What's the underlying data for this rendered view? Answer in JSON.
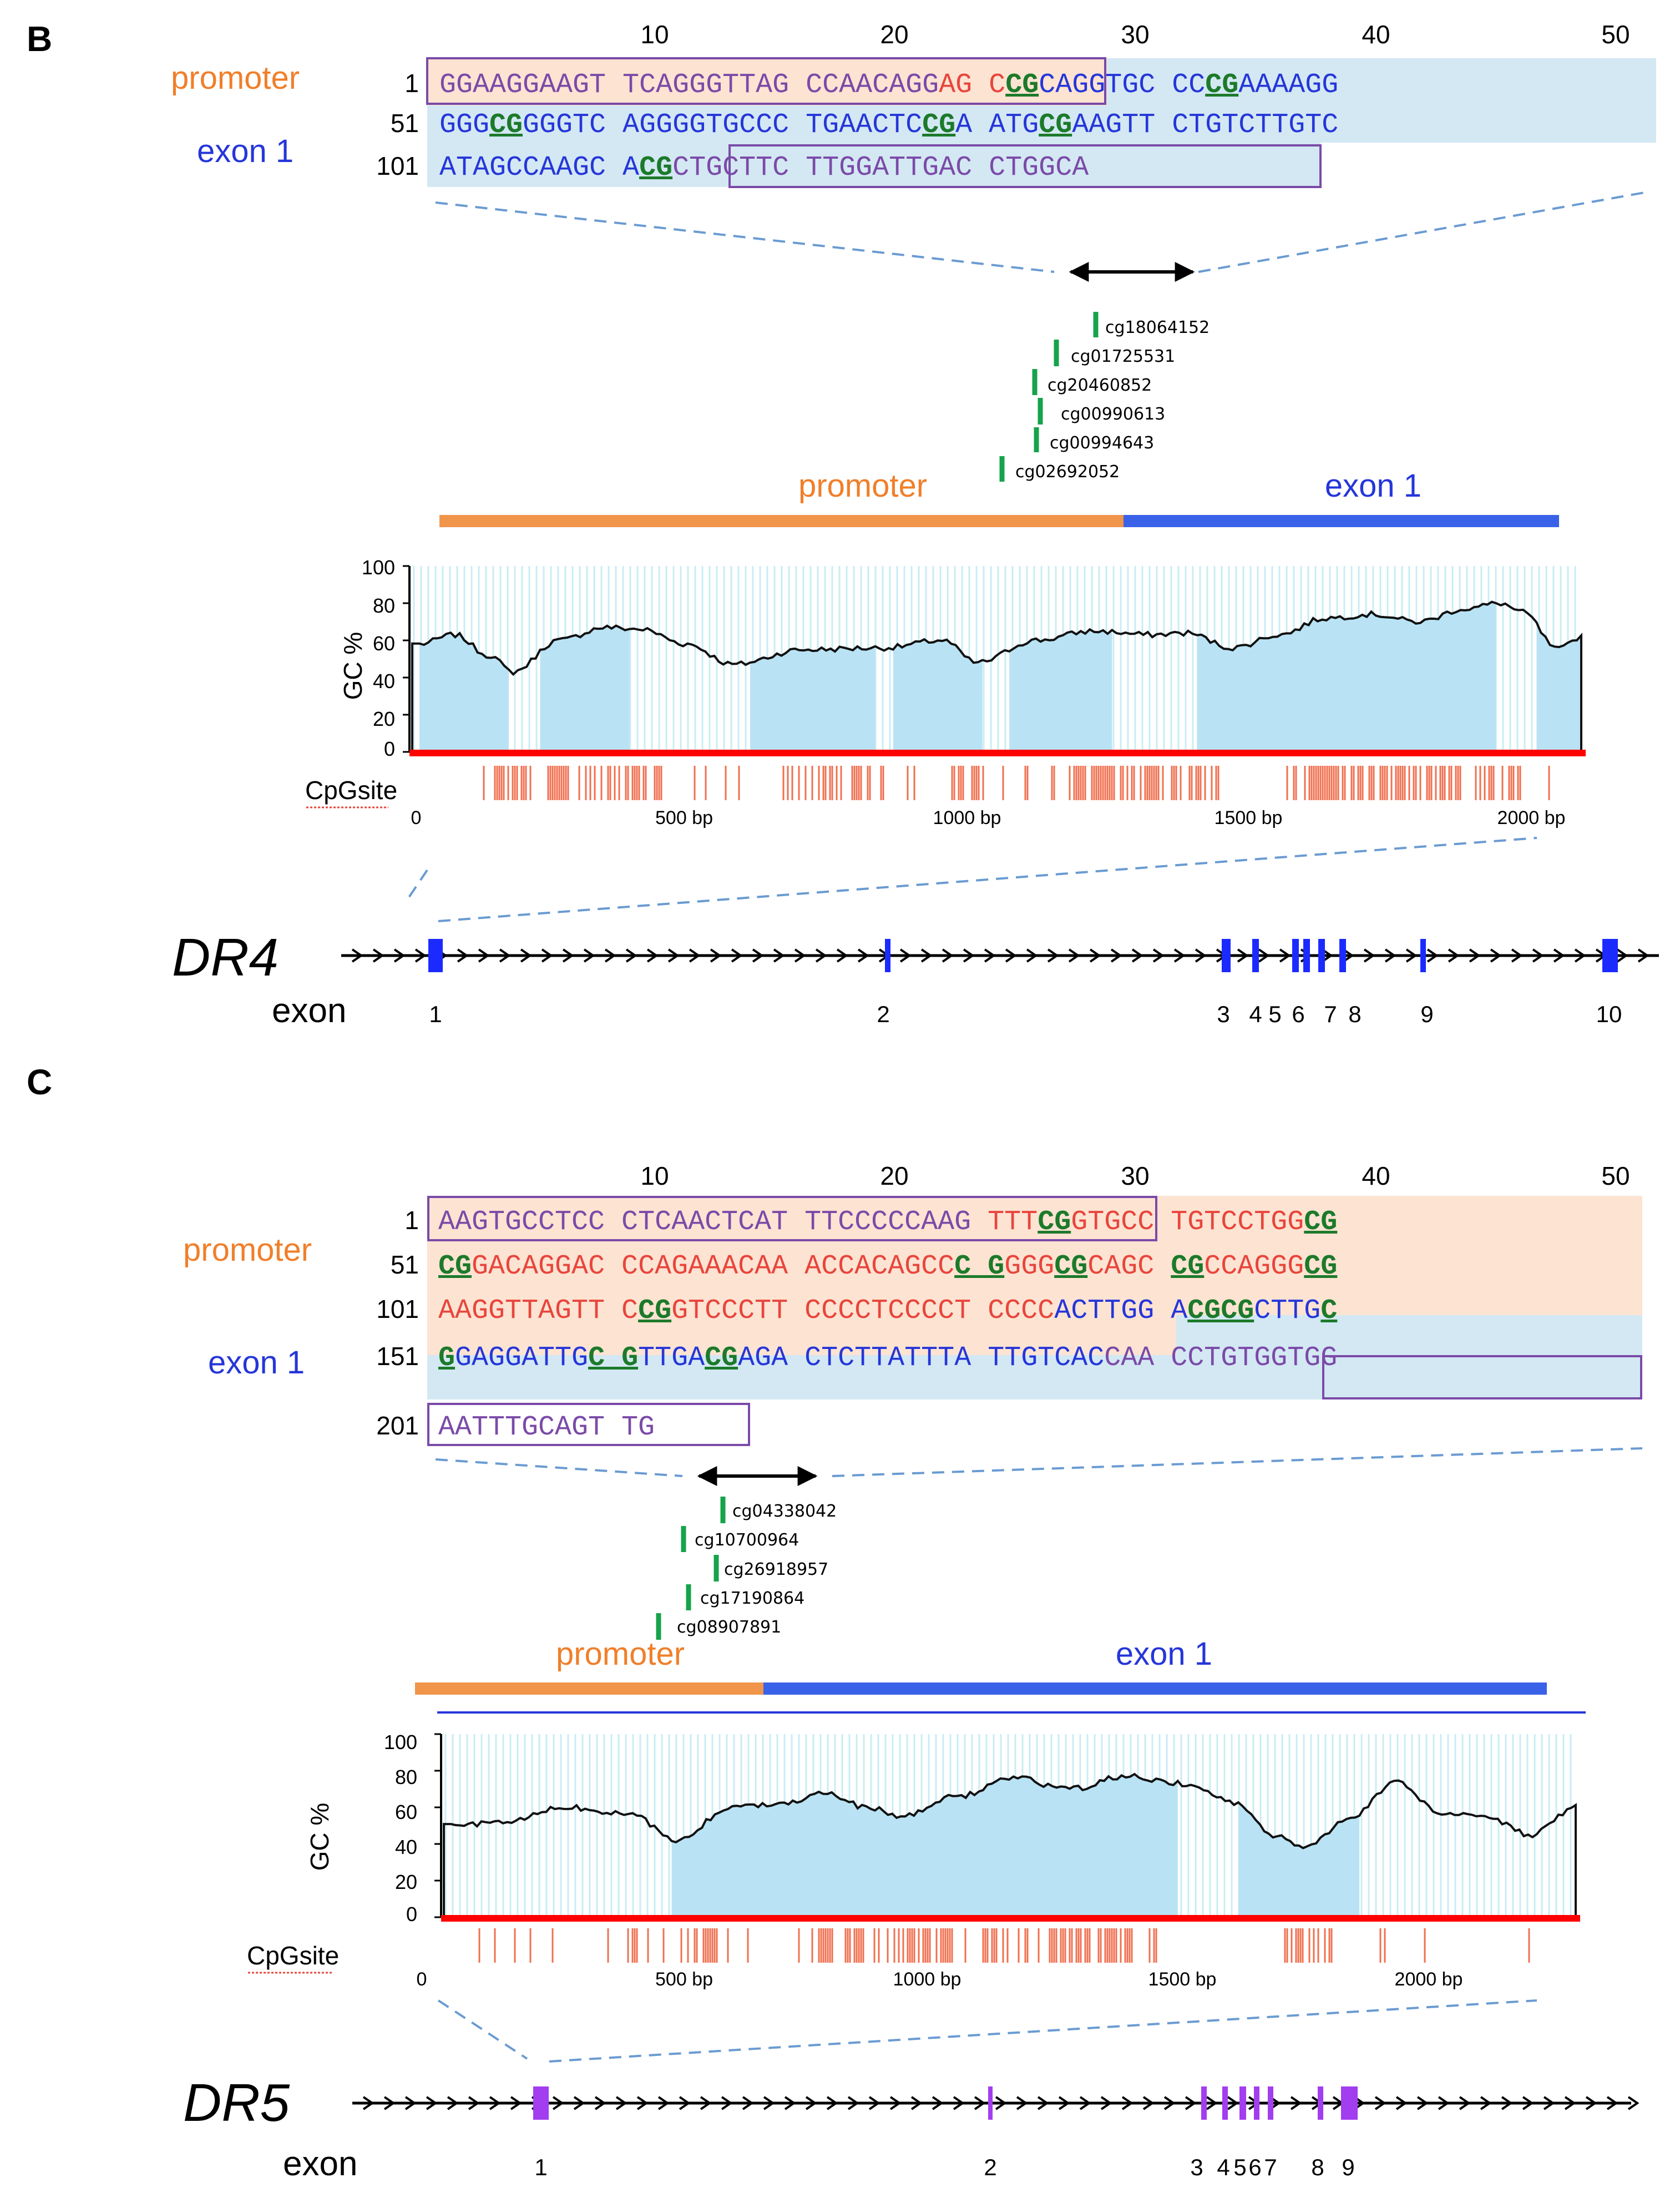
{
  "panels": [
    {
      "id": "B",
      "label": "B",
      "ruler_ticks": [
        "10",
        "20",
        "30",
        "40",
        "50"
      ],
      "region_labels": {
        "promoter": "promoter",
        "exon": "exon 1"
      },
      "sequence_lines": [
        {
          "num": "1",
          "segments": [
            {
              "t": "GGAAGGAAGT TCAGGGTTAG CCAACAGG",
              "c": "purple"
            },
            {
              "t": "AG C",
              "c": "red"
            },
            {
              "t": "CG",
              "c": "cgb"
            },
            {
              "t": "CAGGTGC CC",
              "c": "blue"
            },
            {
              "t": "CG",
              "c": "cgb"
            },
            {
              "t": "AAAAGG",
              "c": "blue"
            }
          ]
        },
        {
          "num": "51",
          "segments": [
            {
              "t": "GGG",
              "c": "blue"
            },
            {
              "t": "CG",
              "c": "cgb"
            },
            {
              "t": "GGGTC AGGGGTGCCC TGAACTC",
              "c": "blue"
            },
            {
              "t": "CG",
              "c": "cgb"
            },
            {
              "t": "A ATG",
              "c": "blue"
            },
            {
              "t": "CG",
              "c": "cgb"
            },
            {
              "t": "AAGTT CTGTCTTGTC",
              "c": "blue"
            }
          ]
        },
        {
          "num": "101",
          "segments": [
            {
              "t": "ATAGCCAAGC A",
              "c": "blue"
            },
            {
              "t": "CG",
              "c": "cgb"
            },
            {
              "t": "CTGCTTC TTGGATTGAC CTGGCA",
              "c": "purple"
            }
          ]
        }
      ],
      "probes": [
        "cg18064152",
        "cg01725531",
        "cg20460852",
        "cg00990613",
        "cg00994643",
        "cg02692052"
      ],
      "gc_axis": {
        "title": "GC %",
        "ticks": [
          "100",
          "80",
          "60",
          "40",
          "20",
          "0"
        ]
      },
      "cpg_label": "CpGsite",
      "bp_ticks": [
        "0",
        "500 bp",
        "1000 bp",
        "1500 bp",
        "2000 bp"
      ],
      "gene": "DR4",
      "exon_word": "exon",
      "exon_numbers": [
        "1",
        "2",
        "3",
        "4",
        "5",
        "6",
        "7",
        "8",
        "9",
        "10"
      ]
    },
    {
      "id": "C",
      "label": "C",
      "ruler_ticks": [
        "10",
        "20",
        "30",
        "40",
        "50"
      ],
      "region_labels": {
        "promoter": "promoter",
        "exon": "exon 1"
      },
      "sequence_lines": [
        {
          "num": "1",
          "segments": [
            {
              "t": "AAGTGCCTCC CTCAACTCAT TTCCCCCAAG",
              "c": "purple"
            },
            {
              "t": " TTT",
              "c": "red"
            },
            {
              "t": "CG",
              "c": "cgb"
            },
            {
              "t": "GTGCC TGTCCTGG",
              "c": "red"
            },
            {
              "t": "CG",
              "c": "cgb"
            }
          ]
        },
        {
          "num": "51",
          "segments": [
            {
              "t": "CG",
              "c": "cgb"
            },
            {
              "t": "GACAGGAC CCAGAAACAA ACCACAGCC",
              "c": "red"
            },
            {
              "t": "C G",
              "c": "cgb"
            },
            {
              "t": "GGG",
              "c": "red"
            },
            {
              "t": "CG",
              "c": "cgb"
            },
            {
              "t": "CAGC ",
              "c": "red"
            },
            {
              "t": "CG",
              "c": "cgb"
            },
            {
              "t": "CCAGGG",
              "c": "red"
            },
            {
              "t": "CG",
              "c": "cgb"
            }
          ]
        },
        {
          "num": "101",
          "segments": [
            {
              "t": "AAGGTTAGTT C",
              "c": "red"
            },
            {
              "t": "CG",
              "c": "cgb"
            },
            {
              "t": "GTCCCTT CCCCTCCCCT CCCC",
              "c": "red"
            },
            {
              "t": "ACTTGG A",
              "c": "blue"
            },
            {
              "t": "CGCG",
              "c": "cgb"
            },
            {
              "t": "CTTG",
              "c": "blue"
            },
            {
              "t": "C",
              "c": "cgb"
            }
          ]
        },
        {
          "num": "151",
          "segments": [
            {
              "t": "G",
              "c": "cgb"
            },
            {
              "t": "GAGGATTG",
              "c": "blue"
            },
            {
              "t": "C G",
              "c": "cgb"
            },
            {
              "t": "TTGA",
              "c": "blue"
            },
            {
              "t": "CG",
              "c": "cgb"
            },
            {
              "t": "AGA CTCTTATTTA TTGTCAC",
              "c": "blue"
            },
            {
              "t": "CAA CCTGTGGTGG",
              "c": "purple"
            }
          ]
        },
        {
          "num": "201",
          "segments": [
            {
              "t": "AATTTGCAGT TG",
              "c": "purple"
            }
          ]
        }
      ],
      "probes": [
        "cg04338042",
        "cg10700964",
        "cg26918957",
        "cg17190864",
        "cg08907891"
      ],
      "gc_axis": {
        "title": "GC %",
        "ticks": [
          "100",
          "80",
          "60",
          "40",
          "20",
          "0"
        ]
      },
      "cpg_label": "CpGsite",
      "bp_ticks": [
        "0",
        "500 bp",
        "1000 bp",
        "1500 bp",
        "2000 bp"
      ],
      "gene": "DR5",
      "exon_word": "exon",
      "exon_numbers": [
        "1",
        "2",
        "3",
        "4",
        "5",
        "6",
        "7",
        "8",
        "9"
      ]
    }
  ],
  "colors": {
    "promoter_bar": "#f0954a",
    "exon_bar": "#3a62e8",
    "promoter_bg": "#fde3d2",
    "exon_bg": "#d3e8f3",
    "gc_fill": "#b9e3f4",
    "cpg_tick": "#f07050",
    "axis_red": "#ff0000",
    "probe_tick": "#16a34a",
    "dr4_exon": "#1b2bff",
    "dr5_exon": "#a23df0",
    "dash": "#6a9bd1"
  }
}
